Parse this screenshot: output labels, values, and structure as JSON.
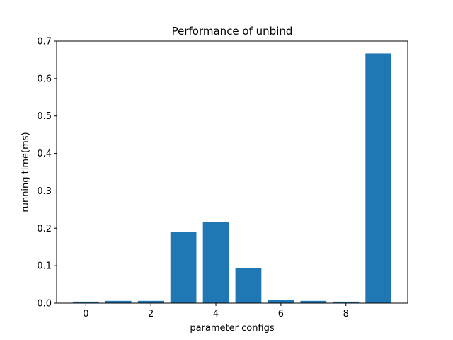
{
  "chart_data": {
    "type": "bar",
    "title": "Performance of unbind",
    "xlabel": "parameter configs",
    "ylabel": "running time(ms)",
    "categories": [
      0,
      1,
      2,
      3,
      4,
      5,
      6,
      7,
      8,
      9
    ],
    "values": [
      0.004,
      0.006,
      0.006,
      0.19,
      0.216,
      0.093,
      0.008,
      0.006,
      0.004,
      0.667
    ],
    "xlim": [
      -0.9,
      9.9
    ],
    "ylim": [
      0,
      0.7
    ],
    "xticks": [
      0,
      2,
      4,
      6,
      8
    ],
    "xtick_labels": [
      "0",
      "2",
      "4",
      "6",
      "8"
    ],
    "yticks": [
      0.0,
      0.1,
      0.2,
      0.3,
      0.4,
      0.5,
      0.6,
      0.7
    ],
    "ytick_labels": [
      "0.0",
      "0.1",
      "0.2",
      "0.3",
      "0.4",
      "0.5",
      "0.6",
      "0.7"
    ],
    "bar_color": "#1f77b4",
    "grid": false,
    "legend": "none"
  }
}
